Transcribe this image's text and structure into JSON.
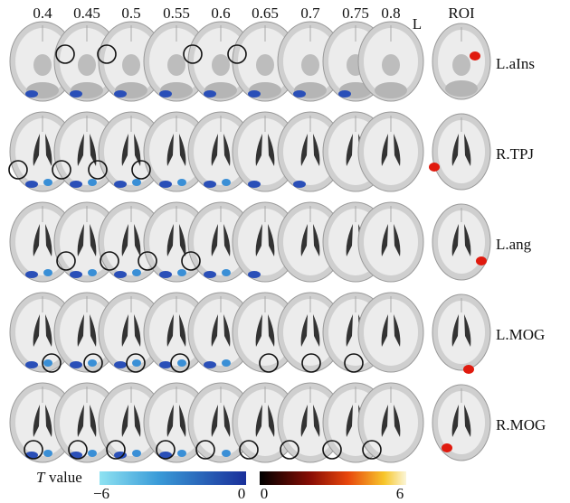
{
  "header": {
    "columns": [
      "0.4",
      "0.45",
      "0.5",
      "0.55",
      "0.6",
      "0.65",
      "0.7",
      "0.75",
      "0.8"
    ],
    "orientation": "L",
    "roi": "ROI"
  },
  "rows": [
    {
      "label": "L.aIns"
    },
    {
      "label": "R.TPJ"
    },
    {
      "label": "L.ang"
    },
    {
      "label": "L.MOG"
    },
    {
      "label": "R.MOG"
    }
  ],
  "legend": {
    "title_symbol": "T",
    "title": "value",
    "negative": {
      "min": "−6",
      "max": "0"
    },
    "positive": {
      "min": "0",
      "max": "6"
    }
  }
}
